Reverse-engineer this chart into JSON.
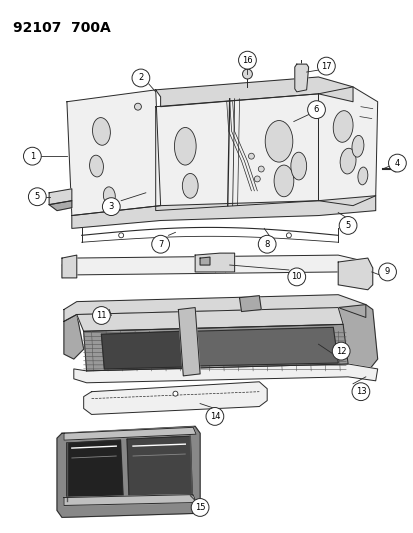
{
  "title": "92107  700A",
  "bg_color": "#ffffff",
  "fig_width": 4.14,
  "fig_height": 5.33,
  "dpi": 100,
  "line_color": "#2a2a2a",
  "fill_light": "#f0f0f0",
  "fill_mid": "#d8d8d8",
  "fill_dark": "#aaaaaa"
}
